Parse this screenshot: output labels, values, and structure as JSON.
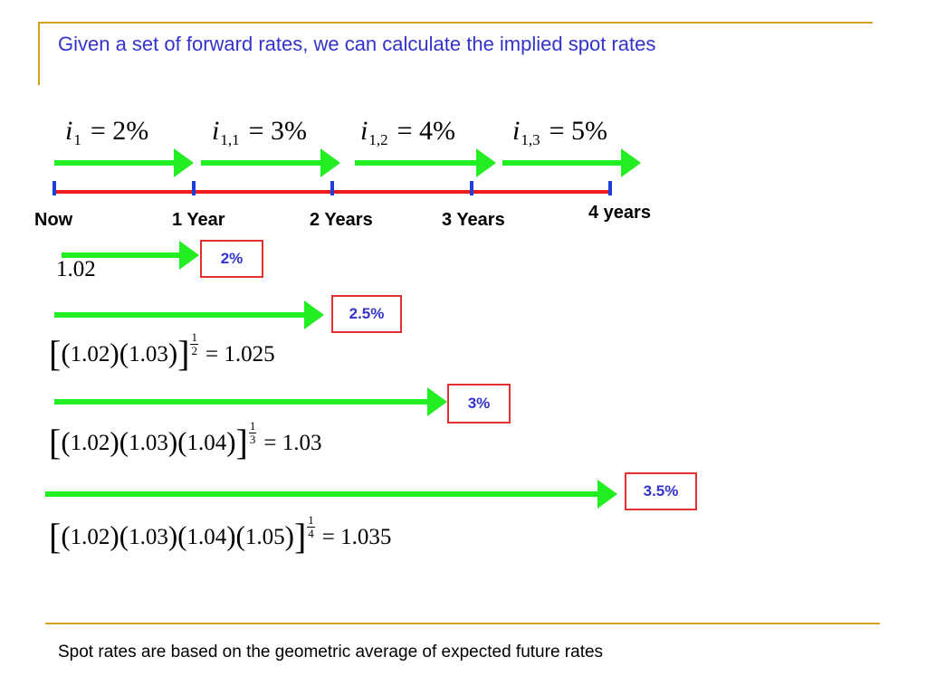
{
  "title": "Given a set of forward rates, we can calculate the implied spot rates",
  "forward_rates": [
    {
      "var": "i",
      "sub": "1",
      "value": "= 2%"
    },
    {
      "var": "i",
      "sub": "1,1",
      "value": "= 3%"
    },
    {
      "var": "i",
      "sub": "1,2",
      "value": "= 4%"
    },
    {
      "var": "i",
      "sub": "1,3",
      "value": "= 5%"
    }
  ],
  "timeline_labels": [
    "Now",
    "1 Year",
    "2 Years",
    "3 Years",
    "4 years"
  ],
  "spot_rates": [
    {
      "badge": "2%",
      "formula_plain": "1.02"
    },
    {
      "badge": "2.5%",
      "factors": [
        "1.02",
        "1.03"
      ],
      "root": "2",
      "result": "= 1.025"
    },
    {
      "badge": "3%",
      "factors": [
        "1.02",
        "1.03",
        "1.04"
      ],
      "root": "3",
      "result": "= 1.03"
    },
    {
      "badge": "3.5%",
      "factors": [
        "1.02",
        "1.03",
        "1.04",
        "1.05"
      ],
      "root": "4",
      "result": "= 1.035"
    }
  ],
  "exponent_numerator": "1",
  "footer": "Spot rates are based on the geometric average of expected future rates",
  "colors": {
    "accent_gold": "#d4a017",
    "title_blue": "#3333cc",
    "arrow_green": "#22ee22",
    "timeline_red": "#ee1c1c",
    "tick_blue": "#1e3fd6",
    "badge_border": "#e03030"
  }
}
